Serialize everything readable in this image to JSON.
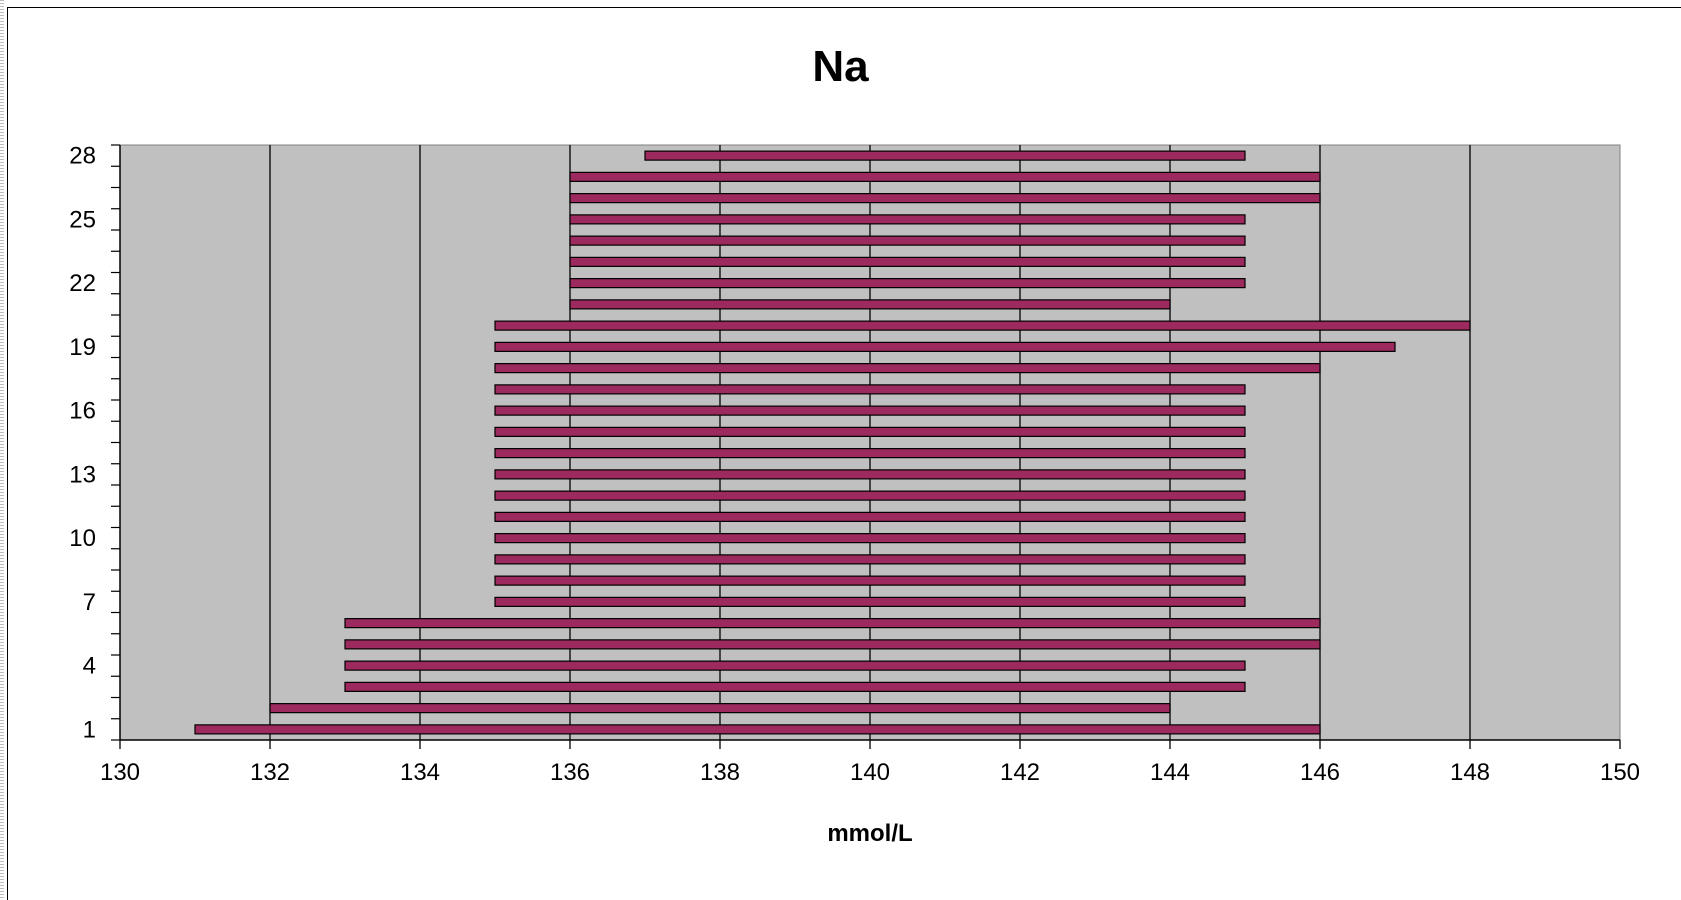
{
  "chart_data": {
    "type": "bar",
    "orientation": "horizontal",
    "style": "floating-range",
    "title": "Na",
    "xlabel": "mmol/L",
    "ylabel": "",
    "xlim": [
      130,
      150
    ],
    "x_ticks": [
      130,
      132,
      134,
      136,
      138,
      140,
      142,
      144,
      146,
      148,
      150
    ],
    "categories": [
      1,
      2,
      3,
      4,
      5,
      6,
      7,
      8,
      9,
      10,
      11,
      12,
      13,
      14,
      15,
      16,
      17,
      18,
      19,
      20,
      21,
      22,
      23,
      24,
      25,
      26,
      27,
      28
    ],
    "y_tick_labels": [
      "1",
      "4",
      "7",
      "10",
      "13",
      "16",
      "19",
      "22",
      "25",
      "28"
    ],
    "series": [
      {
        "low": [
          131,
          132,
          133,
          133,
          133,
          133,
          135,
          135,
          135,
          135,
          135,
          135,
          135,
          135,
          135,
          135,
          135,
          135,
          135,
          135,
          136,
          136,
          136,
          136,
          136,
          136,
          136,
          137
        ],
        "high": [
          146,
          144,
          145,
          145,
          146,
          146,
          145,
          145,
          145,
          145,
          145,
          145,
          145,
          145,
          145,
          145,
          145,
          146,
          147,
          148,
          144,
          145,
          145,
          145,
          145,
          146,
          146,
          145
        ]
      }
    ],
    "grid": "vertical-major",
    "legend": "none",
    "colors": {
      "bar": "#9c2a5e",
      "plot_bg": "#c0c0c0",
      "grid": "#000000"
    }
  }
}
